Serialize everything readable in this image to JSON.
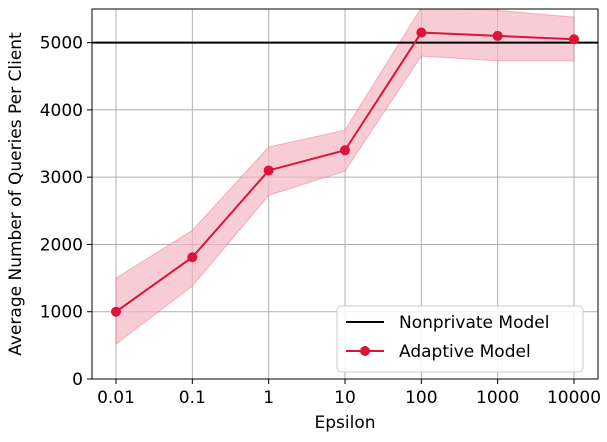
{
  "chart_data": {
    "type": "line",
    "title": "",
    "xlabel": "Epsilon",
    "ylabel": "Average Number of Queries Per Client",
    "x_scale": "log",
    "categories": [
      "0.01",
      "0.1",
      "1",
      "10",
      "100",
      "1000",
      "10000"
    ],
    "ylim": [
      0,
      5500
    ],
    "yticks": [
      0,
      1000,
      2000,
      3000,
      4000,
      5000
    ],
    "ytick_labels": [
      "0",
      "1000",
      "2000",
      "3000",
      "4000",
      "5000"
    ],
    "grid": true,
    "legend_position": "bottom-right",
    "series": [
      {
        "name": "Nonprivate Model",
        "kind": "hline",
        "value": 5000,
        "color": "#000000"
      },
      {
        "name": "Adaptive Model",
        "kind": "line-markers",
        "color": "#dc143c",
        "band_color": "#f4b6c2",
        "values": [
          1000,
          1810,
          3100,
          3400,
          5150,
          5100,
          5050
        ],
        "band_lower": [
          520,
          1380,
          2730,
          3090,
          4800,
          4730,
          4730
        ],
        "band_upper": [
          1500,
          2210,
          3450,
          3700,
          5520,
          5480,
          5380
        ]
      }
    ]
  }
}
